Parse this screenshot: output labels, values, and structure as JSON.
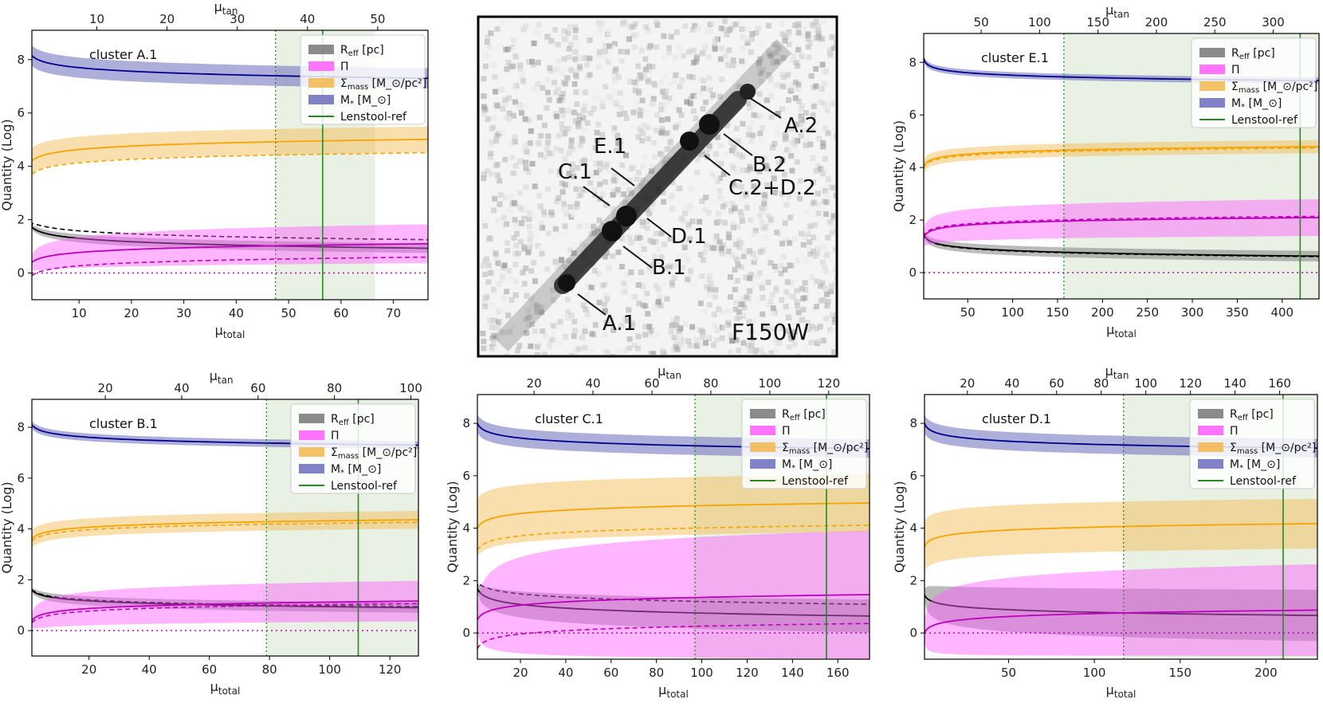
{
  "figure": {
    "legend": [
      {
        "key": "reff",
        "label": "R_eff [pc]",
        "color": "#777777"
      },
      {
        "key": "pi",
        "label": "Π",
        "color": "#ff5cff"
      },
      {
        "key": "sigma",
        "label": "Σ_mass [M_⊙/pc²]",
        "color": "#f5b74c"
      },
      {
        "key": "mstar",
        "label": "M_* [M_⊙]",
        "color": "#6b6bbd"
      },
      {
        "key": "ref",
        "label": "Lenstool-ref",
        "color": "#228b22"
      }
    ],
    "legend_labels_sub": [
      "R_eff [pc]",
      "Σ_mass [M_⊙/pc²]",
      "M_* [M_⊙]"
    ],
    "line_colors": {
      "mstar": "#00008b",
      "sigma": "#f5a400",
      "pi": "#bf00bf",
      "reff": "#000000",
      "ref": "#228b22",
      "span": "#e5efe1"
    },
    "axis_labels": {
      "ylabel": "Quantity (Log)",
      "xlabel": "μtotal",
      "x2label": "μtan"
    }
  },
  "image_panel": {
    "filter": "F150W",
    "labels": [
      {
        "text": "A.1"
      },
      {
        "text": "A.2"
      },
      {
        "text": "B.1"
      },
      {
        "text": "B.2"
      },
      {
        "text": "C.1"
      },
      {
        "text": "C.2+D.2"
      },
      {
        "text": "D.1"
      },
      {
        "text": "E.1"
      }
    ]
  },
  "chart_data": [
    {
      "type": "line",
      "title": "cluster A.1",
      "xlabel": "μtotal",
      "x2label": "μtan",
      "ylabel": "Quantity (Log)",
      "xlim": [
        1,
        76.6
      ],
      "ylim": [
        -1,
        9.1
      ],
      "xticks": [
        10,
        20,
        30,
        40,
        50,
        60,
        70
      ],
      "yticks": [
        0,
        2,
        4,
        6,
        8
      ],
      "x2_factor": 1.34,
      "x2ticks": [
        10,
        20,
        30,
        40,
        50
      ],
      "ref": 56.5,
      "span": [
        47.5,
        66.5
      ],
      "curves": {
        "mstar": [
          8.15,
          0.45,
          0.38
        ],
        "sigma": [
          4.2,
          0.43,
          0.48,
          -0.5
        ],
        "pi": [
          0.4,
          0.37,
          0.48,
          -0.5,
          0.1
        ],
        "reff": [
          1.72,
          -0.42,
          0.1,
          0.32
        ]
      }
    },
    {
      "type": "line",
      "title": "cluster E.1",
      "xlabel": "μtotal",
      "x2label": "μtan",
      "ylabel": "Quantity (Log)",
      "xlim": [
        1,
        441
      ],
      "ylim": [
        -1,
        9.1
      ],
      "xticks": [
        50,
        100,
        150,
        200,
        250,
        300,
        350,
        400
      ],
      "yticks": [
        0,
        2,
        4,
        6,
        8
      ],
      "x2_factor": 1.3,
      "x2ticks": [
        50,
        100,
        150,
        200,
        250,
        300
      ],
      "ref": 420,
      "span": [
        157,
        441
      ],
      "curves": {
        "mstar": [
          8.15,
          0.32,
          0.12
        ],
        "sigma": [
          4.0,
          0.3,
          0.25,
          -0.05
        ],
        "pi": [
          1.3,
          0.3,
          0.45,
          0.05,
          0.02
        ],
        "reff": [
          1.5,
          -0.33,
          0.12,
          -0.02
        ]
      }
    },
    {
      "type": "line",
      "title": "cluster B.1",
      "xlabel": "μtotal",
      "x2label": "μtan",
      "ylabel": "Quantity (Log)",
      "xlim": [
        1,
        129.5
      ],
      "ylim": [
        -1,
        9.1
      ],
      "xticks": [
        20,
        40,
        60,
        80,
        100,
        120
      ],
      "yticks": [
        0,
        2,
        4,
        6,
        8
      ],
      "x2_factor": 1.27,
      "x2ticks": [
        20,
        40,
        60,
        80,
        100
      ],
      "ref": 109.5,
      "span": [
        79,
        129.5
      ],
      "curves": {
        "mstar": [
          8.1,
          0.38,
          0.15
        ],
        "sigma": [
          3.6,
          0.36,
          0.35,
          -0.1
        ],
        "pi": [
          0.4,
          0.36,
          0.55,
          -0.1,
          0.04
        ],
        "reff": [
          1.6,
          -0.33,
          0.12,
          0.04
        ]
      }
    },
    {
      "type": "line",
      "title": "cluster C.1",
      "xlabel": "μtotal",
      "x2label": "μtan",
      "ylabel": "Quantity (Log)",
      "xlim": [
        1,
        174
      ],
      "ylim": [
        -1,
        9.1
      ],
      "xticks": [
        20,
        40,
        60,
        80,
        100,
        120,
        140,
        160
      ],
      "yticks": [
        0,
        2,
        4,
        6,
        8
      ],
      "x2_factor": 1.3,
      "x2ticks": [
        20,
        40,
        60,
        80,
        100,
        120
      ],
      "ref": 155,
      "span": [
        97,
        174
      ],
      "curves": {
        "mstar": [
          8.0,
          0.43,
          0.35
        ],
        "sigma": [
          4.0,
          0.43,
          1.1,
          -0.85
        ],
        "pi": [
          0.5,
          0.43,
          2.2,
          -1.1,
          0.2
        ],
        "reff": [
          1.7,
          -0.47,
          0.55,
          0.45
        ]
      }
    },
    {
      "type": "line",
      "title": "cluster D.1",
      "xlabel": "μtotal",
      "x2label": "μtan",
      "ylabel": "Quantity (Log)",
      "xlim": [
        1,
        230
      ],
      "ylim": [
        -1,
        9.1
      ],
      "xticks": [
        50,
        100,
        150,
        200
      ],
      "yticks": [
        0,
        2,
        4,
        6,
        8
      ],
      "x2_factor": 1.3,
      "x2ticks": [
        20,
        40,
        60,
        80,
        100,
        120,
        140,
        160
      ],
      "ref": 210,
      "span": [
        117,
        230
      ],
      "curves": {
        "mstar": [
          8.0,
          0.4,
          0.35
        ],
        "sigma": [
          3.3,
          0.37,
          0.95
        ],
        "pi": [
          0.0,
          0.37,
          1.5
        ],
        "reff": [
          1.45,
          -0.33,
          0.9
        ]
      }
    }
  ]
}
